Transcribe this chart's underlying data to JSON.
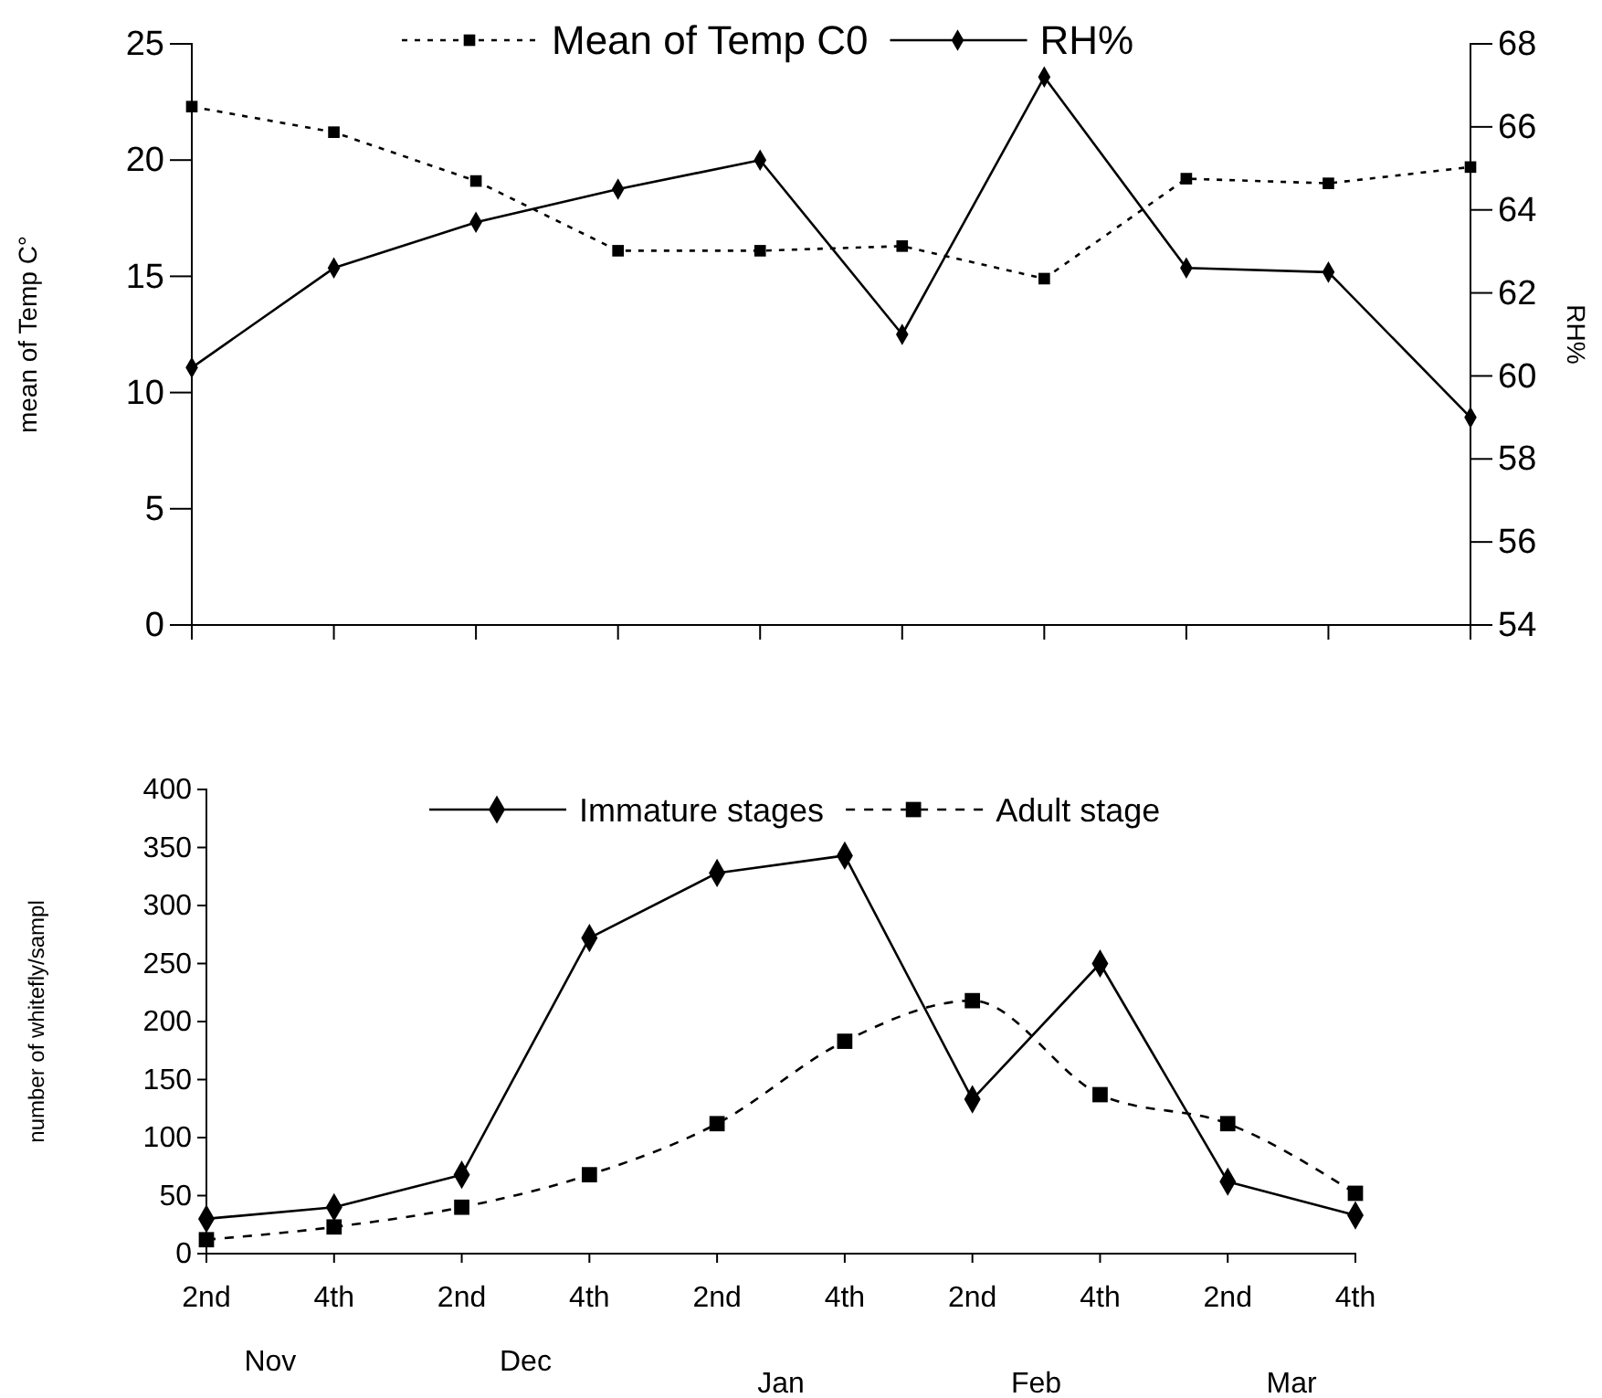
{
  "chart_data": [
    {
      "type": "line",
      "ylabel": "mean of Temp C°",
      "y2label": "RH%",
      "categories": [
        null,
        null,
        null,
        null,
        null,
        null,
        null,
        null,
        null,
        null
      ],
      "ylim": [
        0,
        25
      ],
      "yticks": [
        0,
        5,
        10,
        15,
        20,
        25
      ],
      "y2lim": [
        54,
        68
      ],
      "y2ticks": [
        54,
        56,
        58,
        60,
        62,
        64,
        66,
        68
      ],
      "legend": "top",
      "grid": false,
      "series": [
        {
          "name": "Mean of Temp C0",
          "color": "#000000",
          "line_style": "dotted",
          "marker": "square",
          "values": [
            22.3,
            21.2,
            19.1,
            16.1,
            16.1,
            16.3,
            14.9,
            19.2,
            19.0,
            19.7
          ]
        },
        {
          "name": "RH%",
          "color": "#000000",
          "line_style": "solid",
          "marker": "diamond",
          "axis": "y2",
          "values": [
            60.2,
            62.6,
            63.7,
            64.5,
            65.2,
            61.0,
            67.2,
            62.6,
            62.5,
            59.0
          ]
        }
      ]
    },
    {
      "type": "line",
      "ylabel": "number of whitefly/sampl",
      "categories": [
        "2nd",
        "4th",
        "2nd",
        "4th",
        "2nd",
        "4th",
        "2nd",
        "4th",
        "2nd",
        "4th"
      ],
      "ylim": [
        0,
        400
      ],
      "yticks": [
        0,
        50,
        100,
        150,
        200,
        250,
        300,
        350,
        400
      ],
      "legend": "top",
      "grid": false,
      "annotations": [
        "Nov",
        "Dec",
        "Jan",
        "Feb",
        "Mar"
      ],
      "series": [
        {
          "name": "Immature stages",
          "color": "#000000",
          "line_style": "solid",
          "marker": "diamond",
          "values": [
            30,
            40,
            68,
            272,
            328,
            343,
            133,
            250,
            62,
            33
          ]
        },
        {
          "name": "Adult stage",
          "color": "#000000",
          "line_style": "dashed",
          "marker": "square",
          "values": [
            12,
            23,
            40,
            68,
            112,
            183,
            218,
            137,
            112,
            52
          ]
        }
      ]
    }
  ]
}
